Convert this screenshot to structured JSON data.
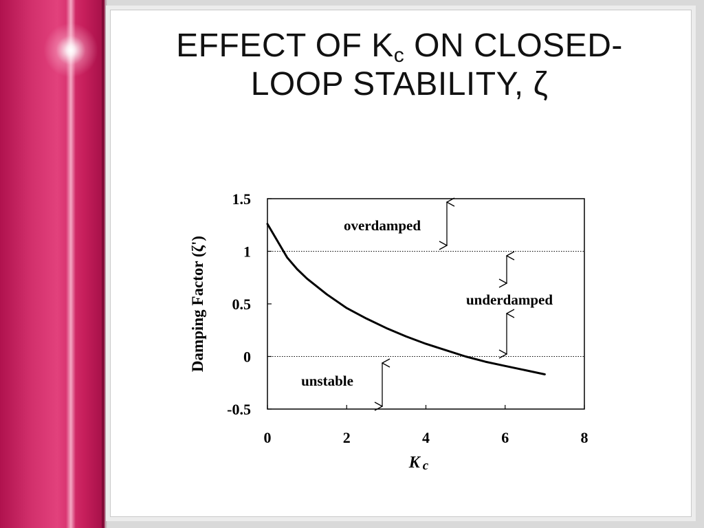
{
  "slide": {
    "title_part1": "EFFECT OF K",
    "title_sub": "c",
    "title_part2": " ON CLOSED-",
    "title_line2": "LOOP STABILITY, ζ"
  },
  "chart_data": {
    "type": "line",
    "xlabel": "K",
    "xlabel_sub": "c",
    "ylabel": "Damping Factor (ζ')",
    "xlim": [
      0,
      8
    ],
    "ylim": [
      -0.5,
      1.5
    ],
    "xticks": [
      "0",
      "2",
      "4",
      "6",
      "8"
    ],
    "yticks": [
      "1.5",
      "1",
      "0.5",
      "0",
      "-0.5"
    ],
    "reference_lines": [
      1,
      0
    ],
    "grid": false,
    "series": [
      {
        "x": [
          0,
          0.25,
          0.5,
          0.75,
          1,
          1.5,
          2,
          2.5,
          3,
          3.5,
          4,
          4.5,
          5,
          5.5,
          6,
          6.5,
          7
        ],
        "y": [
          1.26,
          1.1,
          0.94,
          0.83,
          0.74,
          0.59,
          0.46,
          0.36,
          0.27,
          0.19,
          0.12,
          0.06,
          0.0,
          -0.05,
          -0.09,
          -0.13,
          -0.17
        ]
      }
    ],
    "annotations": {
      "overdamped": "overdamped",
      "underdamped": "underdamped",
      "unstable": "unstable"
    }
  }
}
